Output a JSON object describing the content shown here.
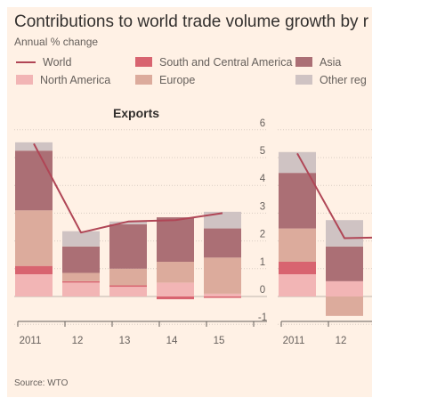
{
  "title": "Contributions to world trade volume growth by r",
  "subtitle": "Annual % change",
  "legend": [
    {
      "label": "World",
      "kind": "line",
      "color": "#b04656"
    },
    {
      "label": "South and Central America",
      "kind": "box",
      "color": "#d86470"
    },
    {
      "label": "Asia",
      "kind": "box",
      "color": "#ab6f75"
    },
    {
      "label": "North America",
      "kind": "box",
      "color": "#f2b5b5"
    },
    {
      "label": "Europe",
      "kind": "box",
      "color": "#dcab9c"
    },
    {
      "label": "Other reg",
      "kind": "box",
      "color": "#cfc3c3"
    }
  ],
  "source": "Source: WTO",
  "chart_data": [
    {
      "type": "bar",
      "stacked": true,
      "title": "Exports",
      "categories": [
        "2011",
        "12",
        "13",
        "14",
        "15"
      ],
      "ylim": [
        -1,
        6
      ],
      "yticks": [
        "6",
        "5",
        "4",
        "3",
        "2",
        "1",
        "0",
        "-1"
      ],
      "grid": true,
      "series": [
        {
          "name": "North America",
          "color": "#f2b5b5",
          "values": [
            0.8,
            0.5,
            0.35,
            0.5,
            0.1
          ]
        },
        {
          "name": "South and Central America",
          "color": "#d86470",
          "values": [
            0.3,
            0.05,
            0.05,
            -0.1,
            -0.05
          ]
        },
        {
          "name": "Europe",
          "color": "#dcab9c",
          "values": [
            2.0,
            0.3,
            0.6,
            0.75,
            1.3
          ]
        },
        {
          "name": "Asia",
          "color": "#ab6f75",
          "values": [
            2.15,
            0.95,
            1.6,
            1.6,
            1.05
          ]
        },
        {
          "name": "Other reg",
          "color": "#cfc3c3",
          "values": [
            0.3,
            0.55,
            0.1,
            0.0,
            0.6
          ]
        }
      ],
      "world": {
        "name": "World",
        "color": "#b04656",
        "values": [
          5.5,
          2.3,
          2.7,
          2.75,
          3.0
        ]
      }
    },
    {
      "type": "bar",
      "stacked": true,
      "title": "",
      "categories": [
        "2011",
        "12"
      ],
      "ylim": [
        -1,
        6
      ],
      "grid": true,
      "series": [
        {
          "name": "North America",
          "color": "#f2b5b5",
          "values": [
            0.8,
            0.55
          ]
        },
        {
          "name": "South and Central America",
          "color": "#d86470",
          "values": [
            0.45,
            0.0
          ]
        },
        {
          "name": "Europe",
          "color": "#dcab9c",
          "values": [
            1.2,
            -0.7
          ]
        },
        {
          "name": "Asia",
          "color": "#ab6f75",
          "values": [
            2.0,
            1.25
          ]
        },
        {
          "name": "Other reg",
          "color": "#cfc3c3",
          "values": [
            0.75,
            0.95
          ]
        }
      ],
      "world": {
        "name": "World",
        "color": "#b04656",
        "values": [
          5.15,
          2.1
        ]
      }
    }
  ]
}
